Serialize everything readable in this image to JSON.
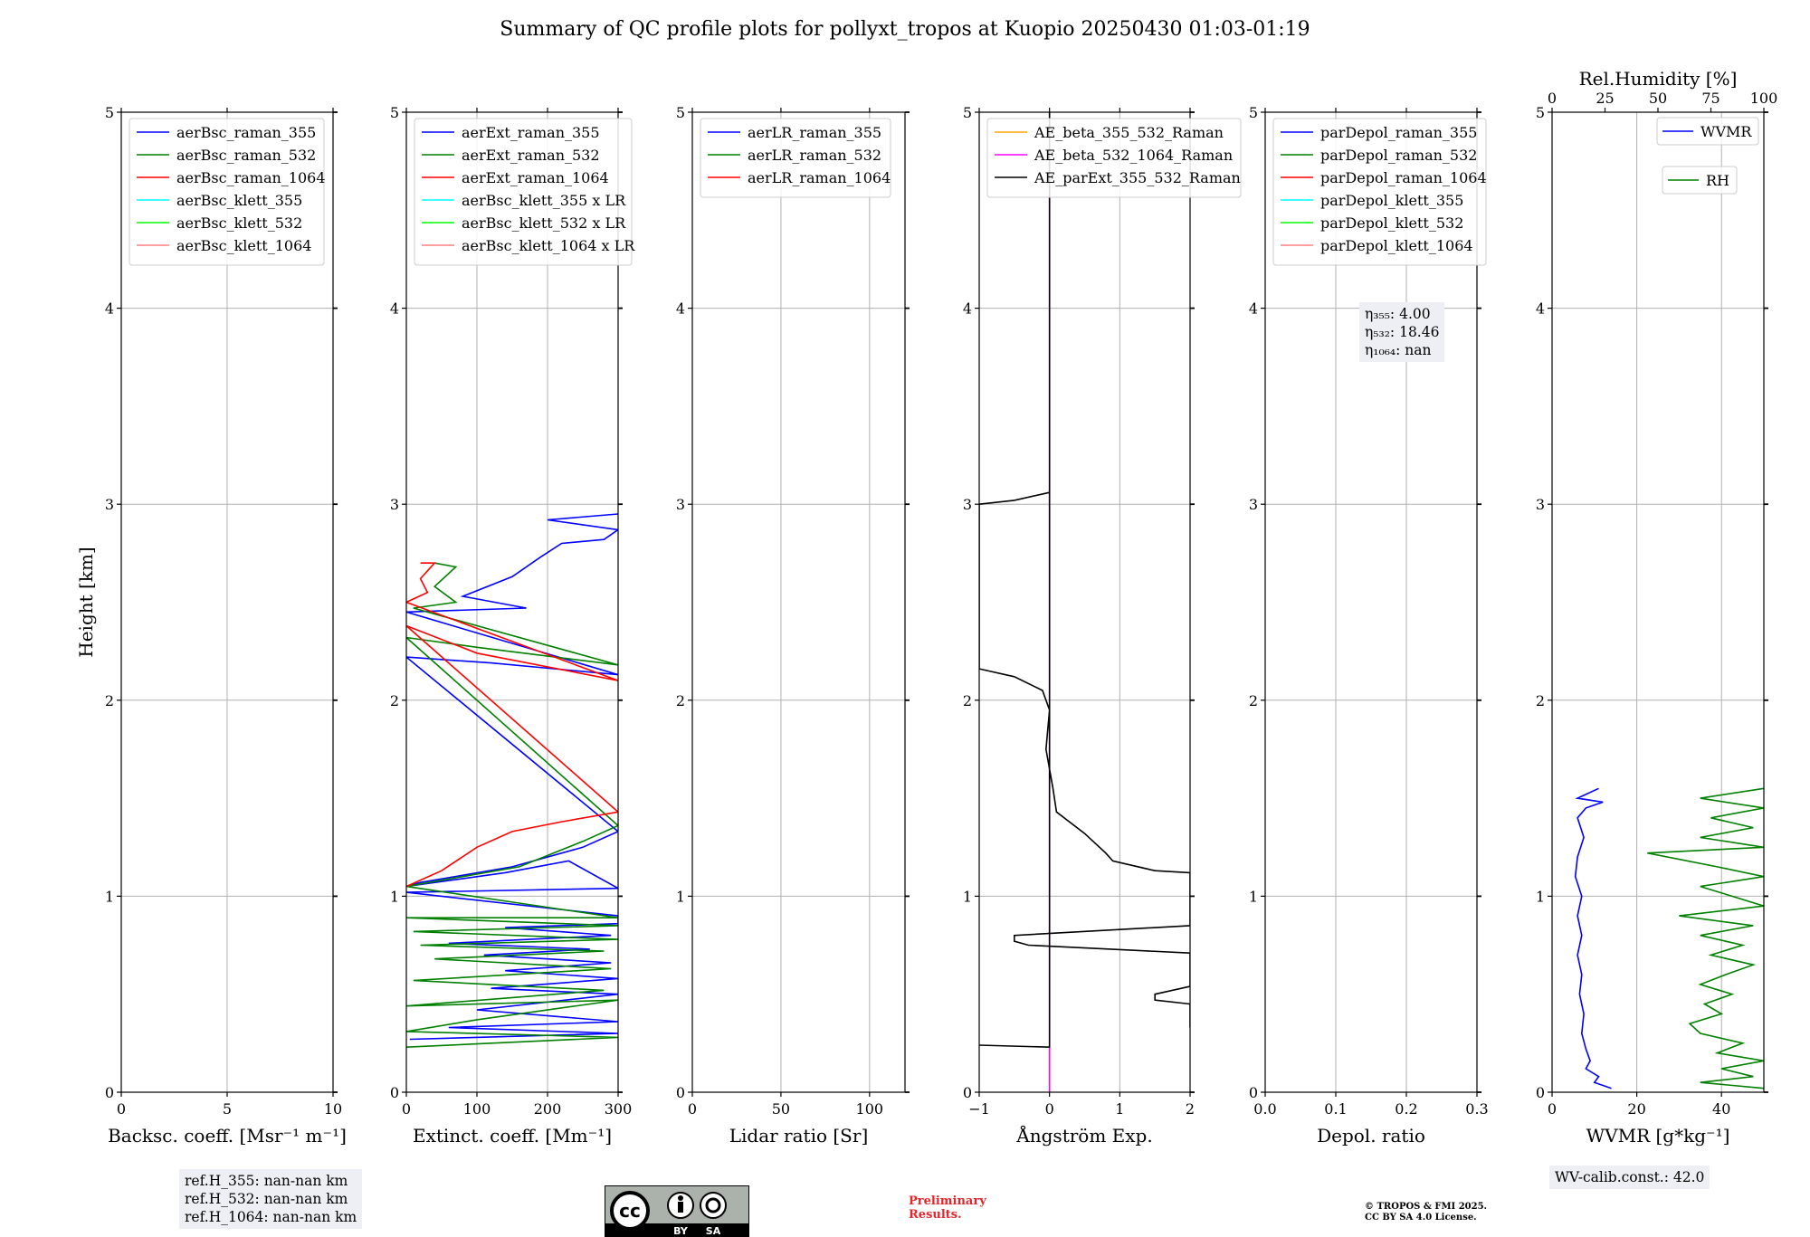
{
  "title": "Summary of QC profile plots for pollyxt_tropos at Kuopio 20250430 01:03-01:19",
  "shared_ylabel": "Height [km]",
  "chart_data": [
    {
      "type": "line",
      "xlabel": "Backsc. coeff. [Msr⁻¹ m⁻¹]",
      "ylabel": "Height [km]",
      "xlim": [
        0,
        10
      ],
      "ylim": [
        0,
        5
      ],
      "xticks": [
        0,
        5,
        10
      ],
      "yticks": [
        0,
        1,
        2,
        3,
        4,
        5
      ],
      "grid": true,
      "legend_position": "top-left",
      "legend": [
        {
          "name": "aerBsc_raman_355",
          "color": "#0000ff"
        },
        {
          "name": "aerBsc_raman_532",
          "color": "#008000"
        },
        {
          "name": "aerBsc_raman_1064",
          "color": "#ff0000"
        },
        {
          "name": "aerBsc_klett_355",
          "color": "#00ffff"
        },
        {
          "name": "aerBsc_klett_532",
          "color": "#00ff00"
        },
        {
          "name": "aerBsc_klett_1064",
          "color": "#ff8080"
        }
      ],
      "series": []
    },
    {
      "type": "line",
      "xlabel": "Extinct. coeff. [Mm⁻¹]",
      "xlim": [
        0,
        300
      ],
      "ylim": [
        0,
        5
      ],
      "xticks": [
        0,
        100,
        200,
        300
      ],
      "yticks": [
        0,
        1,
        2,
        3,
        4,
        5
      ],
      "grid": true,
      "legend_position": "top-left",
      "legend": [
        {
          "name": "aerExt_raman_355",
          "color": "#0000ff"
        },
        {
          "name": "aerExt_raman_532",
          "color": "#008000"
        },
        {
          "name": "aerExt_raman_1064",
          "color": "#ff0000"
        },
        {
          "name": "aerBsc_klett_355 x LR",
          "color": "#00ffff"
        },
        {
          "name": "aerBsc_klett_532 x LR",
          "color": "#00ff00"
        },
        {
          "name": "aerBsc_klett_1064 x LR",
          "color": "#ff8080"
        }
      ],
      "series": [
        {
          "name": "aerExt_raman_355",
          "color": "#0000ff",
          "points": [
            [
              5,
              0.27
            ],
            [
              300,
              0.3
            ],
            [
              60,
              0.33
            ],
            [
              300,
              0.36
            ],
            [
              100,
              0.42
            ],
            [
              300,
              0.5
            ],
            [
              120,
              0.53
            ],
            [
              300,
              0.58
            ],
            [
              140,
              0.62
            ],
            [
              290,
              0.66
            ],
            [
              110,
              0.7
            ],
            [
              260,
              0.73
            ],
            [
              60,
              0.76
            ],
            [
              290,
              0.8
            ],
            [
              140,
              0.84
            ],
            [
              300,
              0.86
            ],
            [
              300,
              0.9
            ],
            [
              0,
              1.02
            ],
            [
              300,
              1.04
            ],
            [
              230,
              1.18
            ],
            [
              140,
              1.12
            ],
            [
              60,
              1.08
            ],
            [
              0,
              1.05
            ],
            [
              20,
              1.07
            ],
            [
              150,
              1.15
            ],
            [
              250,
              1.25
            ],
            [
              300,
              1.33
            ],
            [
              0,
              2.22
            ],
            [
              120,
              2.19
            ],
            [
              300,
              2.13
            ],
            [
              0,
              2.45
            ],
            [
              170,
              2.47
            ],
            [
              80,
              2.53
            ],
            [
              150,
              2.63
            ],
            [
              190,
              2.73
            ],
            [
              220,
              2.8
            ],
            [
              280,
              2.82
            ],
            [
              300,
              2.87
            ],
            [
              200,
              2.92
            ],
            [
              300,
              2.95
            ]
          ]
        },
        {
          "name": "aerExt_raman_532",
          "color": "#008000",
          "points": [
            [
              0,
              0.23
            ],
            [
              300,
              0.28
            ],
            [
              0,
              0.31
            ],
            [
              100,
              0.37
            ],
            [
              300,
              0.47
            ],
            [
              0,
              0.44
            ],
            [
              280,
              0.52
            ],
            [
              10,
              0.57
            ],
            [
              290,
              0.63
            ],
            [
              40,
              0.68
            ],
            [
              280,
              0.72
            ],
            [
              20,
              0.75
            ],
            [
              300,
              0.78
            ],
            [
              10,
              0.82
            ],
            [
              300,
              0.85
            ],
            [
              0,
              0.89
            ],
            [
              300,
              0.89
            ],
            [
              0,
              1.05
            ],
            [
              80,
              1.1
            ],
            [
              160,
              1.15
            ],
            [
              250,
              1.28
            ],
            [
              300,
              1.36
            ],
            [
              0,
              2.32
            ],
            [
              100,
              2.27
            ],
            [
              300,
              2.18
            ],
            [
              10,
              2.47
            ],
            [
              70,
              2.5
            ],
            [
              40,
              2.58
            ],
            [
              70,
              2.68
            ],
            [
              40,
              2.7
            ]
          ]
        },
        {
          "name": "aerExt_raman_1064",
          "color": "#ff0000",
          "points": [
            [
              0,
              1.05
            ],
            [
              50,
              1.13
            ],
            [
              100,
              1.25
            ],
            [
              150,
              1.33
            ],
            [
              220,
              1.38
            ],
            [
              300,
              1.43
            ],
            [
              0,
              2.38
            ],
            [
              100,
              2.24
            ],
            [
              300,
              2.1
            ],
            [
              0,
              2.5
            ],
            [
              30,
              2.55
            ],
            [
              20,
              2.62
            ],
            [
              40,
              2.7
            ],
            [
              20,
              2.7
            ]
          ]
        }
      ]
    },
    {
      "type": "line",
      "xlabel": "Lidar ratio [Sr]",
      "xlim": [
        0,
        120
      ],
      "ylim": [
        0,
        5
      ],
      "xticks": [
        0,
        50,
        100
      ],
      "yticks": [
        0,
        1,
        2,
        3,
        4,
        5
      ],
      "grid": true,
      "legend_position": "top-left",
      "legend": [
        {
          "name": "aerLR_raman_355",
          "color": "#0000ff"
        },
        {
          "name": "aerLR_raman_532",
          "color": "#008000"
        },
        {
          "name": "aerLR_raman_1064",
          "color": "#ff0000"
        }
      ],
      "series": []
    },
    {
      "type": "line",
      "xlabel": "Ångström Exp.",
      "xlim": [
        -1,
        2
      ],
      "ylim": [
        0,
        5
      ],
      "xticks": [
        -1,
        0,
        1,
        2
      ],
      "xticklabels": [
        "−1",
        "0",
        "1",
        "2"
      ],
      "yticks": [
        0,
        1,
        2,
        3,
        4,
        5
      ],
      "grid": true,
      "legend_position": "top-left",
      "legend": [
        {
          "name": "AE_beta_355_532_Raman",
          "color": "#ffa500"
        },
        {
          "name": "AE_beta_532_1064_Raman",
          "color": "#ff00ff"
        },
        {
          "name": "AE_parExt_355_532_Raman",
          "color": "#000000"
        }
      ],
      "series": [
        {
          "name": "AE_beta_532_1064_Raman",
          "color": "#ff00ff",
          "points": [
            [
              0,
              0
            ],
            [
              0,
              5
            ]
          ]
        },
        {
          "name": "AE_parExt_355_532_Raman",
          "color": "#000000",
          "points": [
            [
              -1,
              0.24
            ],
            [
              0,
              0.23
            ],
            [
              0,
              5
            ],
            [
              0,
              3.06
            ],
            [
              -0.5,
              3.02
            ],
            [
              -1,
              3.0
            ],
            [
              -1,
              2.16
            ],
            [
              -0.5,
              2.12
            ],
            [
              -0.1,
              2.05
            ],
            [
              0,
              1.95
            ],
            [
              -0.05,
              1.75
            ],
            [
              0.05,
              1.55
            ],
            [
              0.1,
              1.43
            ],
            [
              0.5,
              1.32
            ],
            [
              0.8,
              1.22
            ],
            [
              0.9,
              1.18
            ],
            [
              1.5,
              1.13
            ],
            [
              2,
              1.12
            ],
            [
              2,
              0.85
            ],
            [
              -0.5,
              0.8
            ],
            [
              -0.5,
              0.77
            ],
            [
              -0.3,
              0.75
            ],
            [
              2,
              0.71
            ],
            [
              2,
              0.54
            ],
            [
              1.5,
              0.5
            ],
            [
              1.5,
              0.47
            ],
            [
              2,
              0.45
            ],
            [
              2,
              0.33
            ]
          ]
        }
      ]
    },
    {
      "type": "line",
      "xlabel": "Depol. ratio",
      "xlim": [
        0,
        0.3
      ],
      "ylim": [
        0,
        5
      ],
      "xticks": [
        0,
        0.1,
        0.2,
        0.3
      ],
      "xticklabels": [
        "0.0",
        "0.1",
        "0.2",
        "0.3"
      ],
      "yticks": [
        0,
        1,
        2,
        3,
        4,
        5
      ],
      "grid": true,
      "legend_position": "top-left",
      "legend": [
        {
          "name": "parDepol_raman_355",
          "color": "#0000ff"
        },
        {
          "name": "parDepol_raman_532",
          "color": "#008000"
        },
        {
          "name": "parDepol_raman_1064",
          "color": "#ff0000"
        },
        {
          "name": "parDepol_klett_355",
          "color": "#00ffff"
        },
        {
          "name": "parDepol_klett_532",
          "color": "#00ff00"
        },
        {
          "name": "parDepol_klett_1064",
          "color": "#ff8080"
        }
      ],
      "series": []
    },
    {
      "type": "line",
      "xlabel": "WVMR [g*kg⁻¹]",
      "x2label": "Rel.Humidity [%]",
      "xlim": [
        0,
        50
      ],
      "x2lim": [
        0,
        100
      ],
      "ylim": [
        0,
        5
      ],
      "xticks": [
        0,
        20,
        40
      ],
      "x2ticks": [
        0,
        25,
        50,
        75,
        100
      ],
      "yticks": [
        0,
        1,
        2,
        3,
        4,
        5
      ],
      "grid": true,
      "legend_position": "top-right",
      "legend": [
        {
          "name": "WVMR",
          "color": "#0000ff"
        },
        {
          "name": "RH",
          "color": "#008000"
        }
      ],
      "series": [
        {
          "name": "WVMR",
          "color": "#0000ff",
          "axis": "x",
          "points": [
            [
              14,
              0.02
            ],
            [
              10,
              0.05
            ],
            [
              11,
              0.08
            ],
            [
              8,
              0.12
            ],
            [
              9,
              0.16
            ],
            [
              8,
              0.22
            ],
            [
              7,
              0.3
            ],
            [
              7.5,
              0.4
            ],
            [
              6.5,
              0.5
            ],
            [
              7,
              0.6
            ],
            [
              6,
              0.7
            ],
            [
              7,
              0.8
            ],
            [
              6,
              0.9
            ],
            [
              7,
              1.0
            ],
            [
              5.5,
              1.1
            ],
            [
              6,
              1.2
            ],
            [
              7.5,
              1.3
            ],
            [
              6,
              1.4
            ],
            [
              8,
              1.45
            ],
            [
              12,
              1.48
            ],
            [
              6,
              1.5
            ],
            [
              11,
              1.55
            ]
          ]
        },
        {
          "name": "RH",
          "axis": "x2",
          "color": "#008000",
          "points": [
            [
              100,
              0.02
            ],
            [
              70,
              0.05
            ],
            [
              95,
              0.08
            ],
            [
              80,
              0.12
            ],
            [
              100,
              0.16
            ],
            [
              78,
              0.2
            ],
            [
              90,
              0.25
            ],
            [
              70,
              0.3
            ],
            [
              65,
              0.35
            ],
            [
              80,
              0.4
            ],
            [
              72,
              0.45
            ],
            [
              85,
              0.5
            ],
            [
              70,
              0.55
            ],
            [
              82,
              0.6
            ],
            [
              95,
              0.65
            ],
            [
              75,
              0.7
            ],
            [
              90,
              0.75
            ],
            [
              70,
              0.8
            ],
            [
              95,
              0.85
            ],
            [
              60,
              0.9
            ],
            [
              100,
              0.95
            ],
            [
              85,
              1.0
            ],
            [
              70,
              1.05
            ],
            [
              100,
              1.1
            ],
            [
              78,
              1.15
            ],
            [
              45,
              1.22
            ],
            [
              100,
              1.25
            ],
            [
              70,
              1.3
            ],
            [
              95,
              1.35
            ],
            [
              75,
              1.4
            ],
            [
              100,
              1.45
            ],
            [
              70,
              1.5
            ],
            [
              100,
              1.55
            ]
          ]
        }
      ]
    }
  ],
  "annotations": {
    "ref_heights": [
      "ref.H_355: nan-nan km",
      "ref.H_532: nan-nan km",
      "ref.H_1064: nan-nan km"
    ],
    "eta_values": [
      "η₃₅₅: 4.00",
      "η₅₃₂: 18.46",
      "η₁₀₆₄: nan"
    ],
    "wv_calib": "WV-calib.const.: 42.0",
    "preliminary": [
      "Preliminary",
      "Results."
    ],
    "copyright": [
      "© TROPOS & FMI 2025.",
      "CC BY SA 4.0 License."
    ],
    "license_badge": [
      "cc",
      "BY",
      "SA"
    ]
  }
}
